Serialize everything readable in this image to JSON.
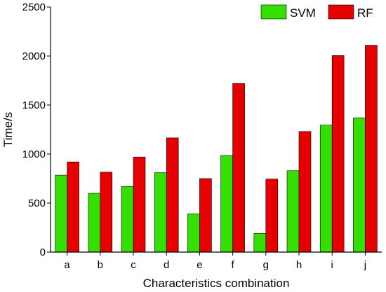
{
  "chart_data": {
    "type": "bar",
    "title": "",
    "xlabel": "Characteristics combination",
    "ylabel": "Time/s",
    "categories": [
      "a",
      "b",
      "c",
      "d",
      "e",
      "f",
      "g",
      "h",
      "i",
      "j"
    ],
    "series": [
      {
        "name": "SVM",
        "color": "#33e000",
        "values": [
          785,
          600,
          670,
          810,
          390,
          985,
          190,
          830,
          1295,
          1370
        ]
      },
      {
        "name": "RF",
        "color": "#e60000",
        "values": [
          920,
          815,
          970,
          1165,
          750,
          1720,
          745,
          1230,
          2005,
          2110
        ]
      }
    ],
    "ylim": [
      0,
      2500
    ],
    "yticks": [
      0,
      500,
      1000,
      1500,
      2000,
      2500
    ],
    "grid": false,
    "legend_position": "top-right",
    "bar_edge_color": "#000000"
  }
}
